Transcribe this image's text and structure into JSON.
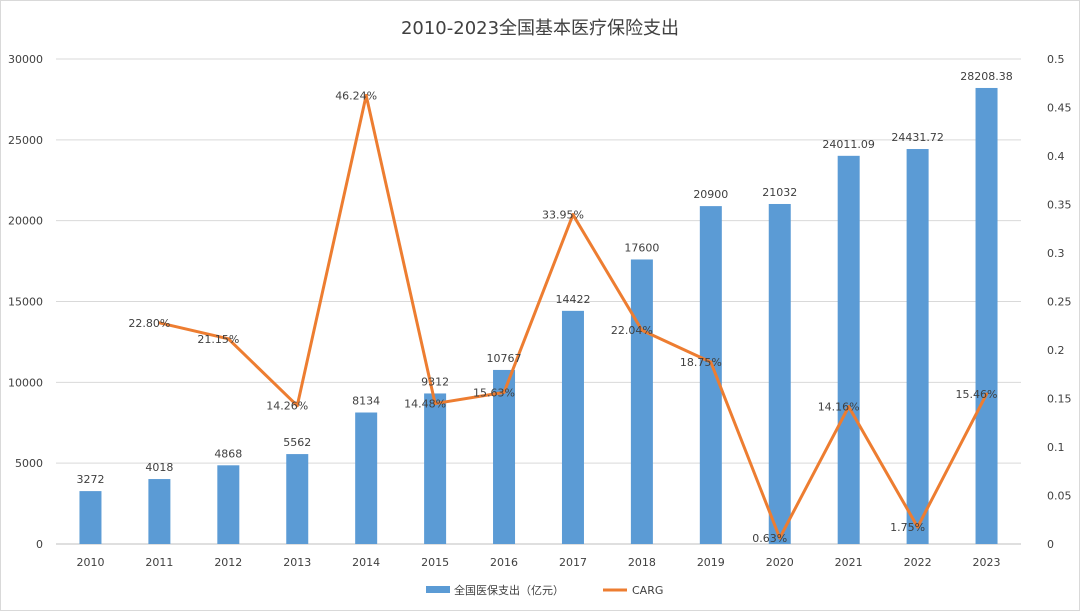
{
  "chart_data": {
    "type": "bar",
    "title": "2010-2023全国基本医疗保险支出",
    "categories": [
      "2010",
      "2011",
      "2012",
      "2013",
      "2014",
      "2015",
      "2016",
      "2017",
      "2018",
      "2019",
      "2020",
      "2021",
      "2022",
      "2023"
    ],
    "series": [
      {
        "name": "全国医保支出（亿元）",
        "type": "bar",
        "axis": "left",
        "color": "#5b9bd5",
        "values": [
          3272,
          4018,
          4868,
          5562,
          8134,
          9312,
          10767,
          14422,
          17600,
          20900,
          21032,
          24011.09,
          24431.72,
          28208.38
        ],
        "labels": [
          "3272",
          "4018",
          "4868",
          "5562",
          "8134",
          "9312",
          "10767",
          "14422",
          "17600",
          "20900",
          "21032",
          "24011.09",
          "24431.72",
          "28208.38"
        ]
      },
      {
        "name": "CARG",
        "type": "line",
        "axis": "right",
        "color": "#ed7d31",
        "values": [
          null,
          0.228,
          0.2115,
          0.1426,
          0.4624,
          0.1448,
          0.1563,
          0.3395,
          0.2204,
          0.1875,
          0.0063,
          0.1416,
          0.0175,
          0.1546
        ],
        "labels": [
          "",
          "22.80%",
          "21.15%",
          "14.26%",
          "46.24%",
          "14.48%",
          "15.63%",
          "33.95%",
          "22.04%",
          "18.75%",
          "0.63%",
          "14.16%",
          "1.75%",
          "15.46%"
        ]
      }
    ],
    "y_left": {
      "min": 0,
      "max": 30000,
      "step": 5000,
      "ticks": [
        "0",
        "5000",
        "10000",
        "15000",
        "20000",
        "25000",
        "30000"
      ]
    },
    "y_right": {
      "min": 0,
      "max": 0.5,
      "step": 0.05,
      "ticks": [
        "0",
        "0.05",
        "0.1",
        "0.15",
        "0.2",
        "0.25",
        "0.3",
        "0.35",
        "0.4",
        "0.45",
        "0.5"
      ]
    },
    "grid": true,
    "legend_position": "bottom"
  }
}
